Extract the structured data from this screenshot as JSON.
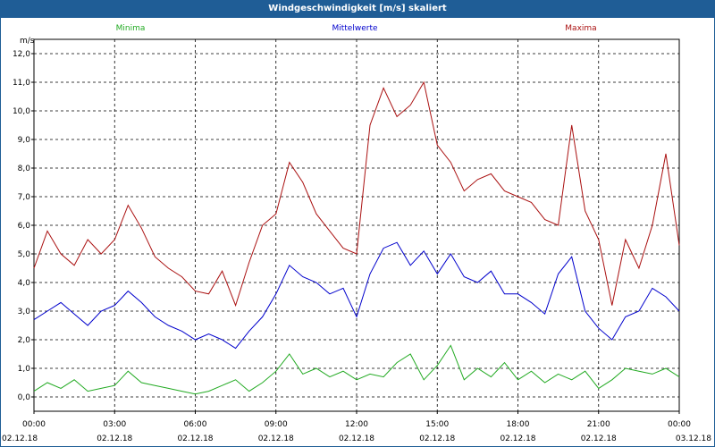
{
  "window": {
    "title": "Windgeschwindigkeit [m/s] skaliert"
  },
  "chart_data": {
    "type": "line",
    "title": "Windgeschwindigkeit [m/s] skaliert",
    "ylabel": "m/s",
    "ylim": [
      -0.5,
      12.5
    ],
    "xlim": [
      0,
      24
    ],
    "grid": true,
    "legend_placement": "top",
    "y_ticks": [
      "0,0",
      "1,0",
      "2,0",
      "3,0",
      "4,0",
      "5,0",
      "6,0",
      "7,0",
      "8,0",
      "9,0",
      "10,0",
      "11,0",
      "12,0"
    ],
    "x_ticks": [
      {
        "time": "00:00",
        "date": "02.12.18"
      },
      {
        "time": "03:00",
        "date": "02.12.18"
      },
      {
        "time": "06:00",
        "date": "02.12.18"
      },
      {
        "time": "09:00",
        "date": "02.12.18"
      },
      {
        "time": "12:00",
        "date": "02.12.18"
      },
      {
        "time": "15:00",
        "date": "02.12.18"
      },
      {
        "time": "18:00",
        "date": "02.12.18"
      },
      {
        "time": "21:00",
        "date": "02.12.18"
      },
      {
        "time": "00:00",
        "date": "03.12.18"
      }
    ],
    "series": [
      {
        "name": "Minima",
        "color": "#22aa22",
        "x": [
          0,
          0.5,
          1,
          1.5,
          2,
          2.5,
          3,
          3.5,
          4,
          4.5,
          5,
          5.5,
          6,
          6.5,
          7,
          7.5,
          8,
          8.5,
          9,
          9.5,
          10,
          10.5,
          11,
          11.5,
          12,
          12.5,
          13,
          13.5,
          14,
          14.5,
          15,
          15.5,
          16,
          16.5,
          17,
          17.5,
          18,
          18.5,
          19,
          19.5,
          20,
          20.5,
          21,
          21.5,
          22,
          22.5,
          23,
          23.5,
          24
        ],
        "values": [
          0.2,
          0.5,
          0.3,
          0.6,
          0.2,
          0.3,
          0.4,
          0.9,
          0.5,
          0.4,
          0.3,
          0.2,
          0.1,
          0.2,
          0.4,
          0.6,
          0.2,
          0.5,
          0.9,
          1.5,
          0.8,
          1.0,
          0.7,
          0.9,
          0.6,
          0.8,
          0.7,
          1.2,
          1.5,
          0.6,
          1.1,
          1.8,
          0.6,
          1.0,
          0.7,
          1.2,
          0.6,
          0.9,
          0.5,
          0.8,
          0.6,
          0.9,
          0.3,
          0.6,
          1.0,
          0.9,
          0.8,
          1.0,
          0.7
        ]
      },
      {
        "name": "Mittelwerte",
        "color": "#0000cc",
        "x": [
          0,
          0.5,
          1,
          1.5,
          2,
          2.5,
          3,
          3.5,
          4,
          4.5,
          5,
          5.5,
          6,
          6.5,
          7,
          7.5,
          8,
          8.5,
          9,
          9.5,
          10,
          10.5,
          11,
          11.5,
          12,
          12.5,
          13,
          13.5,
          14,
          14.5,
          15,
          15.5,
          16,
          16.5,
          17,
          17.5,
          18,
          18.5,
          19,
          19.5,
          20,
          20.5,
          21,
          21.5,
          22,
          22.5,
          23,
          23.5,
          24
        ],
        "values": [
          2.7,
          3.0,
          3.3,
          2.9,
          2.5,
          3.0,
          3.2,
          3.7,
          3.3,
          2.8,
          2.5,
          2.3,
          2.0,
          2.2,
          2.0,
          1.7,
          2.3,
          2.8,
          3.6,
          4.6,
          4.2,
          4.0,
          3.6,
          3.8,
          2.8,
          4.3,
          5.2,
          5.4,
          4.6,
          5.1,
          4.3,
          5.0,
          4.2,
          4.0,
          4.4,
          3.6,
          3.6,
          3.3,
          2.9,
          4.3,
          4.9,
          3.0,
          2.4,
          2.0,
          2.8,
          3.0,
          3.8,
          3.5,
          3.0
        ]
      },
      {
        "name": "Maxima",
        "color": "#aa1111",
        "x": [
          0,
          0.5,
          1,
          1.5,
          2,
          2.5,
          3,
          3.5,
          4,
          4.5,
          5,
          5.5,
          6,
          6.5,
          7,
          7.5,
          8,
          8.5,
          9,
          9.5,
          10,
          10.5,
          11,
          11.5,
          12,
          12.5,
          13,
          13.5,
          14,
          14.5,
          15,
          15.5,
          16,
          16.5,
          17,
          17.5,
          18,
          18.5,
          19,
          19.5,
          20,
          20.5,
          21,
          21.5,
          22,
          22.5,
          23,
          23.5,
          24
        ],
        "values": [
          4.5,
          5.8,
          5.0,
          4.6,
          5.5,
          5.0,
          5.5,
          6.7,
          5.9,
          4.9,
          4.5,
          4.2,
          3.7,
          3.6,
          4.4,
          3.2,
          4.7,
          6.0,
          6.4,
          8.2,
          7.5,
          6.4,
          5.8,
          5.2,
          5.0,
          9.5,
          10.8,
          9.8,
          10.2,
          11.0,
          8.8,
          8.2,
          7.2,
          7.6,
          7.8,
          7.2,
          7.0,
          6.8,
          6.2,
          6.0,
          9.5,
          6.5,
          5.5,
          3.2,
          5.5,
          4.5,
          6.0,
          8.5,
          5.3
        ]
      }
    ]
  }
}
